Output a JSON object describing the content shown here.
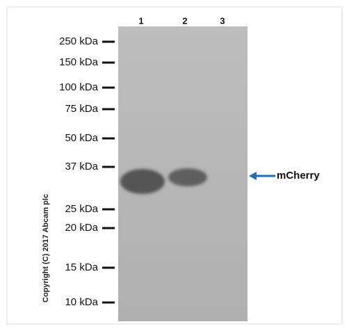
{
  "lanes": [
    "1",
    "2",
    "3"
  ],
  "markers": [
    "250 kDa",
    "150 kDa",
    "100 kDa",
    "75 kDa",
    "50 kDa",
    "37 kDa",
    "25 kDa",
    "20 kDa",
    "15 kDa",
    "10 kDa"
  ],
  "annotation": {
    "label": "mCherry"
  },
  "copyright": "Copyright (C) 2017 Abcam plc"
}
